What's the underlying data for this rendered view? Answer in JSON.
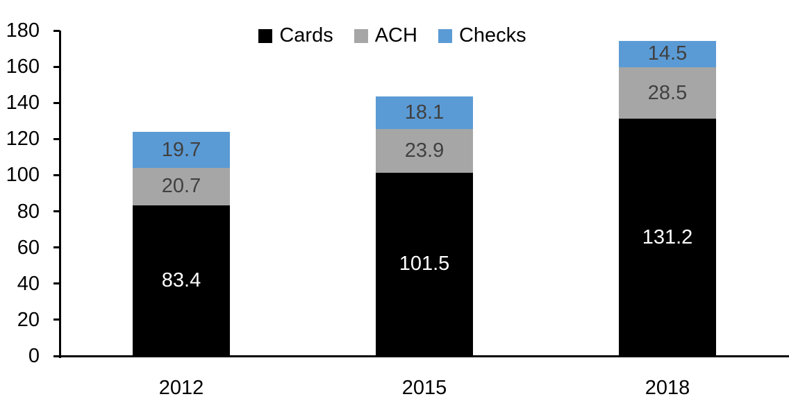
{
  "chart_data": {
    "type": "bar",
    "stacked": true,
    "title": "",
    "xlabel": "",
    "ylabel": "",
    "categories": [
      "2012",
      "2015",
      "2018"
    ],
    "series": [
      {
        "name": "Cards",
        "color": "#000000",
        "label_color": "#ffffff",
        "values": [
          83.4,
          101.5,
          131.2
        ]
      },
      {
        "name": "ACH",
        "color": "#a6a6a6",
        "label_color": "#404040",
        "values": [
          20.7,
          23.9,
          28.5
        ]
      },
      {
        "name": "Checks",
        "color": "#5b9bd5",
        "label_color": "#404040",
        "values": [
          19.7,
          18.1,
          14.5
        ]
      }
    ],
    "totals": [
      123.8,
      143.5,
      174.2
    ],
    "ylim": [
      0,
      180
    ],
    "yticks": [
      0,
      20,
      40,
      60,
      80,
      100,
      120,
      140,
      160,
      180
    ],
    "grid": false,
    "legend_position": "top-center",
    "axis_color": "#000000",
    "background_color": "#ffffff"
  }
}
